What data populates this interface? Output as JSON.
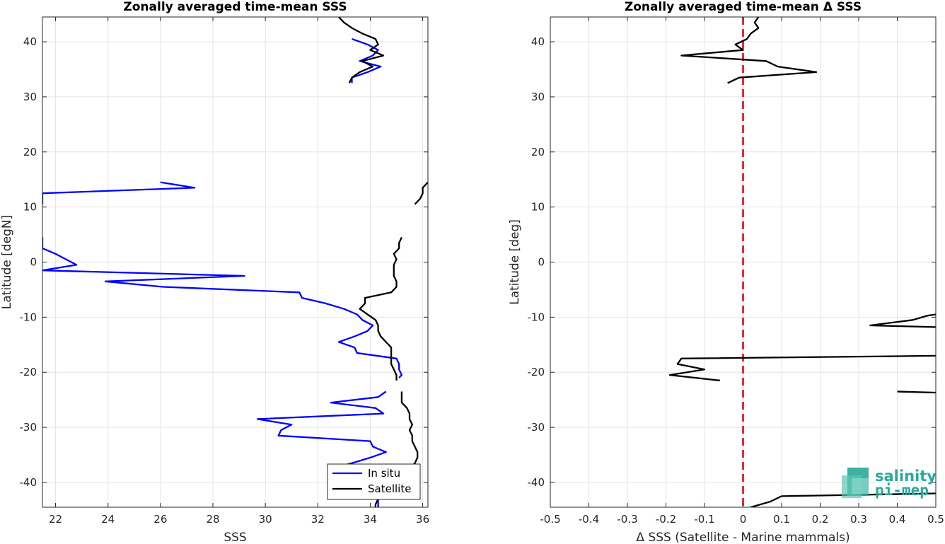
{
  "chart_data": [
    {
      "type": "line",
      "title": "Zonally averaged time-mean SSS",
      "xlabel": "SSS",
      "ylabel": "Latitude [degN]",
      "xlim": [
        21.5,
        36.2
      ],
      "ylim": [
        -44.5,
        44.5
      ],
      "xticks": [
        22,
        24,
        26,
        28,
        30,
        32,
        34,
        36
      ],
      "yticks": [
        -40,
        -30,
        -20,
        -10,
        0,
        10,
        20,
        30,
        40
      ],
      "grid": true,
      "legend": {
        "position": "bottom-right",
        "entries": [
          "In situ",
          "Satellite"
        ]
      },
      "series": [
        {
          "name": "In situ",
          "color": "#0000ff",
          "segments": [
            [
              [
                33.3,
                32.5
              ],
              [
                33.3,
                33.5
              ],
              [
                33.9,
                34.5
              ],
              [
                34.4,
                35.5
              ],
              [
                33.6,
                36.5
              ],
              [
                34.1,
                37.5
              ],
              [
                34.3,
                38.5
              ],
              [
                33.9,
                39.5
              ],
              [
                33.3,
                40.5
              ]
            ],
            [
              [
                26.0,
                14.5
              ],
              [
                27.3,
                13.5
              ],
              [
                21.5,
                12.5
              ],
              [
                21.5,
                11.5
              ],
              [
                21.5,
                10.5
              ]
            ],
            [
              [
                21.5,
                4.5
              ],
              [
                21.5,
                3.5
              ],
              [
                21.5,
                2.5
              ],
              [
                22.0,
                1.5
              ],
              [
                22.4,
                0.5
              ],
              [
                22.8,
                -0.5
              ],
              [
                21.5,
                -1.5
              ],
              [
                29.2,
                -2.5
              ],
              [
                23.9,
                -3.5
              ],
              [
                26.1,
                -4.5
              ],
              [
                31.3,
                -5.5
              ],
              [
                31.4,
                -6.5
              ],
              [
                32.3,
                -7.5
              ],
              [
                33.0,
                -8.5
              ],
              [
                33.5,
                -9.5
              ],
              [
                33.7,
                -10.5
              ],
              [
                34.1,
                -11.5
              ],
              [
                33.9,
                -12.5
              ],
              [
                33.4,
                -13.5
              ],
              [
                32.8,
                -14.5
              ],
              [
                33.4,
                -15.5
              ],
              [
                33.5,
                -16.5
              ],
              [
                35.0,
                -17.5
              ],
              [
                35.1,
                -18.5
              ],
              [
                35.1,
                -19.5
              ],
              [
                35.2,
                -20.5
              ],
              [
                35.1,
                -21.0
              ]
            ],
            [
              [
                34.6,
                -23.5
              ],
              [
                34.3,
                -24.5
              ],
              [
                32.5,
                -25.5
              ],
              [
                34.2,
                -26.5
              ],
              [
                34.5,
                -27.5
              ],
              [
                29.7,
                -28.5
              ],
              [
                31.0,
                -29.5
              ],
              [
                30.6,
                -30.5
              ],
              [
                30.5,
                -31.5
              ],
              [
                34.0,
                -32.5
              ],
              [
                34.1,
                -33.5
              ],
              [
                34.6,
                -34.5
              ],
              [
                34.0,
                -35.5
              ],
              [
                33.3,
                -36.5
              ],
              [
                32.9,
                -37.0
              ]
            ],
            [
              [
                34.3,
                -43.0
              ],
              [
                34.3,
                -44.0
              ],
              [
                34.3,
                -44.5
              ]
            ]
          ]
        },
        {
          "name": "Satellite",
          "color": "#000000",
          "segments": [
            [
              [
                32.8,
                44.5
              ],
              [
                33.0,
                43.5
              ],
              [
                33.3,
                42.5
              ],
              [
                33.7,
                41.5
              ],
              [
                34.2,
                40.5
              ],
              [
                34.3,
                39.5
              ],
              [
                34.0,
                38.5
              ],
              [
                34.5,
                37.5
              ],
              [
                33.7,
                36.5
              ],
              [
                34.1,
                35.5
              ],
              [
                33.6,
                34.5
              ],
              [
                33.3,
                33.5
              ],
              [
                33.2,
                32.5
              ]
            ],
            [
              [
                36.2,
                14.5
              ],
              [
                36.0,
                13.5
              ],
              [
                36.0,
                12.5
              ],
              [
                35.9,
                11.5
              ],
              [
                35.7,
                10.5
              ]
            ],
            [
              [
                35.2,
                4.5
              ],
              [
                35.1,
                3.5
              ],
              [
                35.1,
                2.5
              ],
              [
                34.9,
                1.5
              ],
              [
                35.0,
                0.5
              ],
              [
                34.9,
                -0.5
              ],
              [
                34.9,
                -1.5
              ],
              [
                34.9,
                -2.5
              ],
              [
                35.0,
                -3.5
              ],
              [
                35.0,
                -4.5
              ],
              [
                34.8,
                -5.5
              ],
              [
                33.8,
                -6.5
              ],
              [
                33.8,
                -7.5
              ],
              [
                33.6,
                -8.5
              ],
              [
                33.9,
                -9.5
              ],
              [
                34.2,
                -10.5
              ],
              [
                34.3,
                -11.5
              ],
              [
                34.3,
                -12.5
              ],
              [
                34.4,
                -13.5
              ],
              [
                34.6,
                -14.5
              ],
              [
                34.8,
                -15.5
              ],
              [
                34.8,
                -16.5
              ],
              [
                34.8,
                -17.5
              ],
              [
                34.8,
                -18.5
              ],
              [
                34.9,
                -19.5
              ],
              [
                35.0,
                -20.5
              ],
              [
                35.0,
                -21.5
              ]
            ],
            [
              [
                35.2,
                -23.5
              ],
              [
                35.2,
                -24.5
              ],
              [
                35.2,
                -25.5
              ],
              [
                35.4,
                -26.5
              ],
              [
                35.5,
                -27.5
              ],
              [
                35.5,
                -28.5
              ],
              [
                35.6,
                -29.5
              ],
              [
                35.5,
                -30.5
              ],
              [
                35.6,
                -31.5
              ],
              [
                35.6,
                -32.5
              ],
              [
                35.7,
                -33.5
              ],
              [
                35.8,
                -34.5
              ],
              [
                35.8,
                -35.5
              ],
              [
                35.7,
                -36.5
              ],
              [
                35.5,
                -37.5
              ],
              [
                35.3,
                -38.5
              ],
              [
                35.2,
                -39.5
              ]
            ],
            [
              [
                34.3,
                -43.0
              ],
              [
                34.2,
                -44.0
              ],
              [
                34.2,
                -44.5
              ]
            ]
          ]
        }
      ]
    },
    {
      "type": "line",
      "title": "Zonally averaged time-mean Δ SSS",
      "xlabel": "Δ SSS (Satellite - Marine mammals)",
      "ylabel": "Latitude [deg]",
      "xlim": [
        -0.5,
        0.5
      ],
      "ylim": [
        -44.5,
        44.5
      ],
      "xticks": [
        -0.5,
        -0.4,
        -0.3,
        -0.2,
        -0.1,
        0,
        0.1,
        0.2,
        0.3,
        0.4,
        0.5
      ],
      "xtick_labels": [
        "-0.5",
        "-0.4",
        "-0.3",
        "-0.2",
        "-0.1",
        "0",
        "0.1",
        "0.2",
        "0.3",
        "0.4",
        "0.5"
      ],
      "yticks": [
        -40,
        -30,
        -20,
        -10,
        0,
        10,
        20,
        30,
        40
      ],
      "grid": true,
      "reference_line": {
        "x": 0,
        "color": "#e00000",
        "style": "dashed"
      },
      "series": [
        {
          "name": "",
          "color": "#000000",
          "segments": [
            [
              [
                0.04,
                44.5
              ],
              [
                0.03,
                43.5
              ],
              [
                0.04,
                42.5
              ],
              [
                0.02,
                41.5
              ],
              [
                0.01,
                40.5
              ],
              [
                -0.02,
                39.5
              ],
              [
                0.0,
                38.5
              ],
              [
                -0.16,
                37.5
              ],
              [
                0.06,
                36.5
              ],
              [
                0.09,
                35.5
              ],
              [
                0.19,
                34.5
              ],
              [
                -0.01,
                33.5
              ],
              [
                -0.04,
                32.5
              ]
            ],
            [
              [
                0.5,
                -9.5
              ],
              [
                0.48,
                -9.7
              ],
              [
                0.44,
                -10.5
              ],
              [
                0.33,
                -11.5
              ],
              [
                0.5,
                -11.8
              ]
            ],
            [
              [
                0.5,
                -17.0
              ],
              [
                -0.16,
                -17.5
              ],
              [
                -0.17,
                -18.5
              ],
              [
                -0.1,
                -19.5
              ],
              [
                -0.19,
                -20.5
              ],
              [
                -0.06,
                -21.5
              ]
            ],
            [
              [
                0.4,
                -23.5
              ],
              [
                0.5,
                -23.7
              ]
            ],
            [
              [
                0.5,
                -42.0
              ],
              [
                0.1,
                -42.5
              ],
              [
                0.07,
                -43.5
              ],
              [
                0.02,
                -44.5
              ]
            ]
          ]
        }
      ]
    }
  ],
  "logo": {
    "line1": "salinity",
    "line2": "pi-mep"
  }
}
